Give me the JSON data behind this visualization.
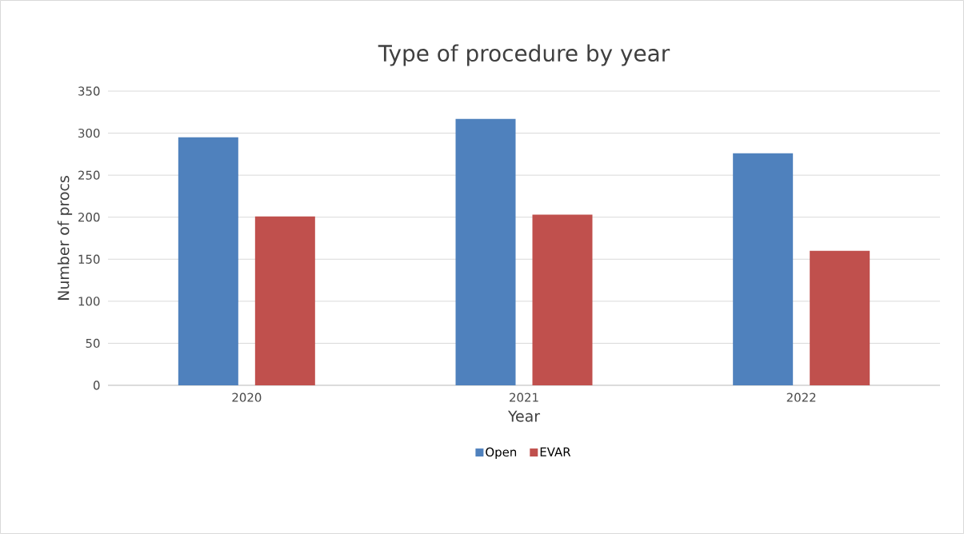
{
  "chart_data": {
    "type": "bar",
    "title": "Type of procedure by year",
    "xlabel": "Year",
    "ylabel": "Number of procs",
    "categories": [
      "2020",
      "2021",
      "2022"
    ],
    "series": [
      {
        "name": "Open",
        "color": "#4f81bd",
        "values": [
          295,
          317,
          276
        ]
      },
      {
        "name": "EVAR",
        "color": "#c0504d",
        "values": [
          201,
          203,
          160
        ]
      }
    ],
    "ylim": [
      0,
      350
    ],
    "yticks": [
      0,
      50,
      100,
      150,
      200,
      250,
      300,
      350
    ],
    "grid": "y",
    "legend": "bottom"
  }
}
